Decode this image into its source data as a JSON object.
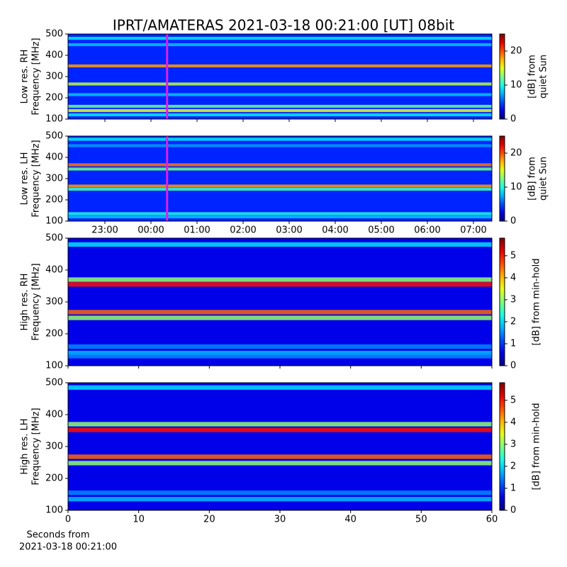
{
  "figure": {
    "title": "IPRT/AMATERAS 2021-03-18 00:21:00 [UT]   08bit"
  },
  "chart_data": [
    {
      "type": "heatmap",
      "ylabel": [
        "Low res. RH",
        "Frequency [MHz]"
      ],
      "colorbar_label": [
        "[dB] from",
        "quiet Sun"
      ],
      "colormap": "jet",
      "xlim": [
        -1.8,
        7.4
      ],
      "xticks": [
        -1,
        0,
        1,
        2,
        3,
        4,
        5,
        6,
        7
      ],
      "ylim": [
        100,
        500
      ],
      "yticks": [
        100,
        200,
        300,
        400,
        500
      ],
      "clim": [
        0,
        25
      ],
      "cticks": [
        0,
        10,
        20
      ],
      "base_value": 4,
      "bands": {
        "freq": [
          480,
          450,
          350,
          265,
          215,
          160,
          140,
          120
        ],
        "values": [
          9,
          8,
          18,
          14,
          8,
          12,
          15,
          9
        ]
      },
      "marker": {
        "x": 0.35,
        "color": "#e01ee0"
      }
    },
    {
      "type": "heatmap",
      "ylabel": [
        "Low res. LH",
        "Frequency [MHz]"
      ],
      "colorbar_label": [
        "[dB] from",
        "quiet Sun"
      ],
      "colormap": "jet",
      "xlim": [
        -1.8,
        7.4
      ],
      "xticks": [
        {
          "value": -1,
          "label": "23:00"
        },
        {
          "value": 0,
          "label": "00:00"
        },
        {
          "value": 1,
          "label": "01:00"
        },
        {
          "value": 2,
          "label": "02:00"
        },
        {
          "value": 3,
          "label": "03:00"
        },
        {
          "value": 4,
          "label": "04:00"
        },
        {
          "value": 5,
          "label": "05:00"
        },
        {
          "value": 6,
          "label": "06:00"
        },
        {
          "value": 7,
          "label": "07:00"
        }
      ],
      "ylim": [
        100,
        500
      ],
      "yticks": [
        100,
        200,
        300,
        400,
        500
      ],
      "clim": [
        0,
        25
      ],
      "cticks": [
        0,
        10,
        20
      ],
      "base_value": 4,
      "bands": {
        "freq": [
          485,
          455,
          365,
          345,
          265,
          250,
          135,
          120
        ],
        "values": [
          9,
          7,
          19,
          12,
          18,
          11,
          10,
          8
        ]
      },
      "marker": {
        "x": 0.35,
        "color": "#e01ee0"
      }
    },
    {
      "type": "heatmap",
      "ylabel": [
        "High res. RH",
        "Frequency [MHz]"
      ],
      "colorbar_label": [
        "[dB] from min-hold"
      ],
      "colormap": "jet",
      "xlim": [
        0,
        60
      ],
      "xticks": [
        0,
        10,
        20,
        30,
        40,
        50,
        60
      ],
      "ylim": [
        100,
        500
      ],
      "yticks": [
        100,
        200,
        300,
        400,
        500
      ],
      "clim": [
        0,
        5.8
      ],
      "cticks": [
        0,
        1,
        2,
        3,
        4,
        5
      ],
      "base_value": 0.6,
      "bands": {
        "freq": [
          480,
          370,
          355,
          268,
          250,
          160,
          140,
          130
        ],
        "values": [
          2,
          3,
          5,
          4.5,
          3,
          1.5,
          1.8,
          1.5
        ]
      }
    },
    {
      "type": "heatmap",
      "ylabel": [
        "High res. LH",
        "Frequency [MHz]"
      ],
      "colorbar_label": [
        "[dB] from min-hold"
      ],
      "colormap": "jet",
      "xlim": [
        0,
        60
      ],
      "xticks": [
        0,
        10,
        20,
        30,
        40,
        50,
        60
      ],
      "xlabel": [
        "Seconds from",
        "2021-03-18 00:21:00"
      ],
      "ylim": [
        100,
        500
      ],
      "yticks": [
        100,
        200,
        300,
        400,
        500
      ],
      "clim": [
        0,
        5.8
      ],
      "cticks": [
        0,
        1,
        2,
        3,
        4,
        5
      ],
      "base_value": 0.6,
      "bands": {
        "freq": [
          485,
          370,
          352,
          268,
          248,
          155,
          135
        ],
        "values": [
          2,
          3,
          5,
          4.5,
          3,
          1.5,
          1.8
        ]
      }
    }
  ]
}
